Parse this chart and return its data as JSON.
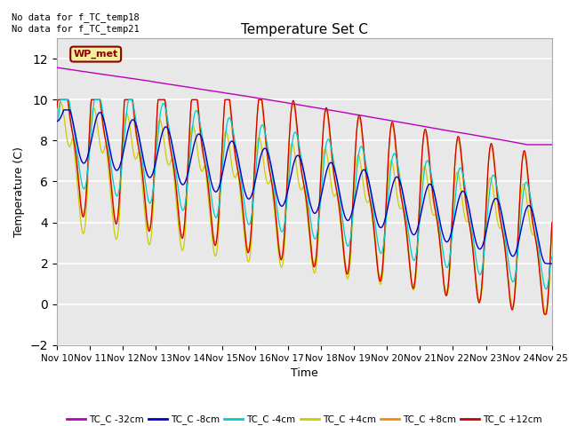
{
  "title": "Temperature Set C",
  "xlabel": "Time",
  "ylabel": "Temperature (C)",
  "ylim": [
    -2,
    13
  ],
  "yticks": [
    -2,
    0,
    2,
    4,
    6,
    8,
    10,
    12
  ],
  "annotation_text": "No data for f_TC_temp18\nNo data for f_TC_temp21",
  "wp_met_label": "WP_met",
  "legend_labels": [
    "TC_C -32cm",
    "TC_C -8cm",
    "TC_C -4cm",
    "TC_C +4cm",
    "TC_C +8cm",
    "TC_C +12cm"
  ],
  "line_colors": [
    "#bb00bb",
    "#0000cc",
    "#00cccc",
    "#cccc00",
    "#ff8800",
    "#cc0000"
  ],
  "fig_facecolor": "#ffffff",
  "ax_facecolor": "#e8e8e8",
  "grid_color": "#ffffff",
  "n_days": 15,
  "x_tick_labels": [
    "Nov 10",
    "Nov 11",
    "Nov 12",
    "Nov 13",
    "Nov 14",
    "Nov 15",
    "Nov 16",
    "Nov 17",
    "Nov 18",
    "Nov 19",
    "Nov 20",
    "Nov 21",
    "Nov 22",
    "Nov 23",
    "Nov 24",
    "Nov 25"
  ]
}
